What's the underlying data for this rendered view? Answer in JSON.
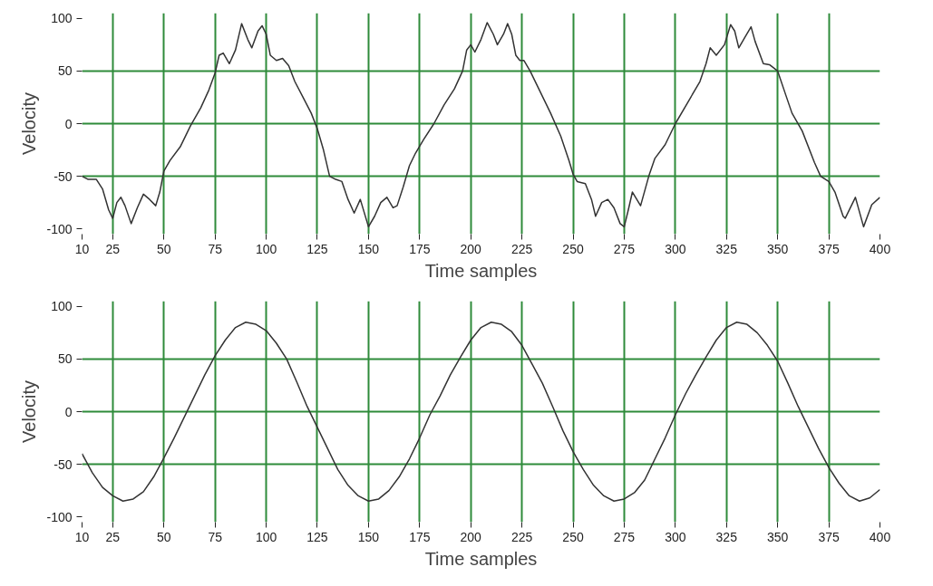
{
  "chart_data": [
    {
      "type": "line",
      "xlabel": "Time samples",
      "ylabel": "Velocity",
      "xlim": [
        10,
        400
      ],
      "ylim": [
        -105,
        105
      ],
      "xticks": [
        10,
        25,
        50,
        75,
        100,
        125,
        150,
        175,
        200,
        225,
        250,
        275,
        300,
        325,
        350,
        375,
        400
      ],
      "yticks": [
        -100,
        -50,
        0,
        50,
        100
      ],
      "grid": true,
      "series": [
        {
          "color": "#333333",
          "x": [
            10,
            13,
            17,
            20,
            23,
            25,
            27,
            29,
            31,
            34,
            37,
            40,
            43,
            46,
            48,
            50,
            53,
            58,
            63,
            68,
            72,
            75,
            77,
            79,
            82,
            85,
            88,
            91,
            93,
            96,
            98,
            100,
            102,
            105,
            108,
            111,
            114,
            118,
            122,
            125,
            128,
            131,
            134,
            137,
            140,
            143,
            146,
            150,
            153,
            156,
            159,
            162,
            164,
            167,
            170,
            173,
            177,
            182,
            187,
            192,
            196,
            198,
            200,
            202,
            205,
            208,
            211,
            213,
            216,
            218,
            220,
            222,
            224,
            226,
            229,
            234,
            239,
            244,
            248,
            250,
            252,
            256,
            259,
            261,
            264,
            267,
            270,
            273,
            275,
            277,
            279,
            283,
            287,
            290,
            295,
            300,
            306,
            312,
            315,
            317,
            320,
            324,
            327,
            329,
            331,
            334,
            337,
            339,
            343,
            346,
            350,
            354,
            357,
            362,
            368,
            371,
            375,
            378,
            382,
            383,
            388,
            392,
            396,
            400
          ],
          "values": [
            -50,
            -53,
            -53,
            -62,
            -82,
            -90,
            -75,
            -70,
            -78,
            -95,
            -80,
            -67,
            -72,
            -78,
            -65,
            -45,
            -35,
            -22,
            -2,
            15,
            32,
            48,
            65,
            67,
            57,
            70,
            95,
            80,
            72,
            88,
            93,
            85,
            65,
            60,
            62,
            55,
            40,
            25,
            10,
            -5,
            -25,
            -50,
            -53,
            -55,
            -72,
            -85,
            -72,
            -98,
            -88,
            -75,
            -70,
            -80,
            -78,
            -60,
            -40,
            -28,
            -15,
            0,
            18,
            33,
            50,
            70,
            75,
            68,
            80,
            96,
            85,
            75,
            85,
            95,
            85,
            65,
            60,
            60,
            50,
            30,
            10,
            -12,
            -35,
            -48,
            -55,
            -57,
            -72,
            -88,
            -75,
            -72,
            -80,
            -95,
            -98,
            -82,
            -65,
            -78,
            -50,
            -33,
            -20,
            0,
            20,
            40,
            57,
            72,
            65,
            75,
            94,
            88,
            72,
            82,
            92,
            78,
            57,
            56,
            50,
            27,
            10,
            -7,
            -37,
            -50,
            -55,
            -65,
            -88,
            -90,
            -70,
            -98,
            -77,
            -70
          ]
        }
      ]
    },
    {
      "type": "line",
      "xlabel": "Time samples",
      "ylabel": "Velocity",
      "xlim": [
        10,
        400
      ],
      "ylim": [
        -105,
        105
      ],
      "xticks": [
        10,
        25,
        50,
        75,
        100,
        125,
        150,
        175,
        200,
        225,
        250,
        275,
        300,
        325,
        350,
        375,
        400
      ],
      "yticks": [
        -100,
        -50,
        0,
        50,
        100
      ],
      "grid": true,
      "series": [
        {
          "color": "#333333",
          "x": [
            10,
            15,
            20,
            25,
            30,
            35,
            40,
            45,
            50,
            55,
            60,
            65,
            70,
            75,
            80,
            85,
            90,
            95,
            100,
            105,
            110,
            115,
            120,
            125,
            130,
            135,
            140,
            145,
            150,
            155,
            160,
            165,
            170,
            175,
            180,
            185,
            190,
            195,
            200,
            205,
            210,
            215,
            220,
            225,
            230,
            235,
            240,
            245,
            250,
            255,
            260,
            265,
            270,
            275,
            280,
            285,
            290,
            295,
            300,
            305,
            310,
            315,
            320,
            325,
            330,
            335,
            340,
            345,
            350,
            355,
            360,
            365,
            370,
            375,
            380,
            385,
            390,
            395,
            400
          ],
          "values": [
            -40,
            -58,
            -72,
            -80,
            -85,
            -83,
            -76,
            -62,
            -44,
            -25,
            -5,
            15,
            35,
            53,
            68,
            80,
            85,
            83,
            77,
            65,
            50,
            28,
            5,
            -15,
            -35,
            -55,
            -70,
            -80,
            -85,
            -83,
            -75,
            -62,
            -45,
            -25,
            -3,
            15,
            35,
            52,
            68,
            80,
            85,
            83,
            76,
            63,
            45,
            27,
            5,
            -18,
            -38,
            -55,
            -70,
            -80,
            -85,
            -83,
            -77,
            -65,
            -45,
            -25,
            -3,
            17,
            35,
            52,
            68,
            80,
            85,
            83,
            75,
            63,
            48,
            27,
            5,
            -15,
            -35,
            -53,
            -68,
            -80,
            -85,
            -82,
            -74
          ]
        }
      ]
    }
  ]
}
